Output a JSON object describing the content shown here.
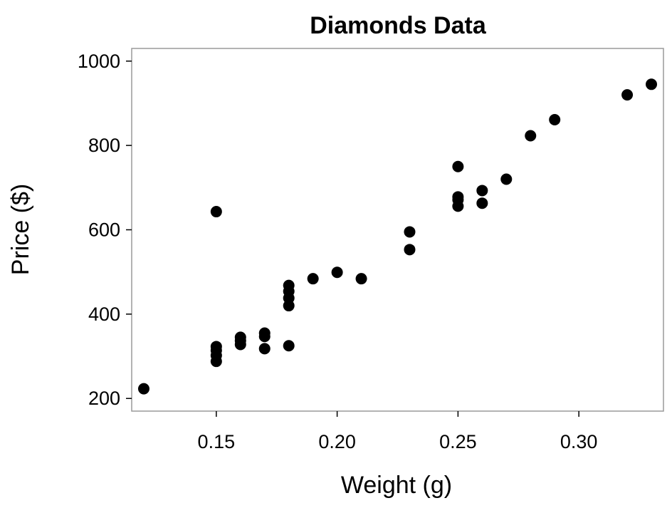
{
  "chart_data": {
    "type": "scatter",
    "title": "Diamonds Data",
    "xlabel": "Weight (g)",
    "ylabel": "Price ($)",
    "xlim": [
      0.115,
      0.335
    ],
    "ylim": [
      170,
      1030
    ],
    "x_ticks": [
      0.15,
      0.2,
      0.25,
      0.3
    ],
    "x_tick_labels": [
      "0.15",
      "0.20",
      "0.25",
      "0.30"
    ],
    "y_ticks": [
      200,
      400,
      600,
      800,
      1000
    ],
    "y_tick_labels": [
      "200",
      "400",
      "600",
      "800",
      "1000"
    ],
    "grid": false,
    "legend": "none",
    "marker_color": "#000000",
    "frame_color": "#9a9a9a",
    "points": [
      {
        "x": 0.12,
        "y": 223
      },
      {
        "x": 0.15,
        "y": 643
      },
      {
        "x": 0.15,
        "y": 323
      },
      {
        "x": 0.15,
        "y": 314
      },
      {
        "x": 0.15,
        "y": 302
      },
      {
        "x": 0.15,
        "y": 288
      },
      {
        "x": 0.16,
        "y": 345
      },
      {
        "x": 0.16,
        "y": 337
      },
      {
        "x": 0.16,
        "y": 328
      },
      {
        "x": 0.17,
        "y": 355
      },
      {
        "x": 0.17,
        "y": 347
      },
      {
        "x": 0.17,
        "y": 318
      },
      {
        "x": 0.18,
        "y": 468
      },
      {
        "x": 0.18,
        "y": 454
      },
      {
        "x": 0.18,
        "y": 438
      },
      {
        "x": 0.18,
        "y": 420
      },
      {
        "x": 0.18,
        "y": 325
      },
      {
        "x": 0.19,
        "y": 484
      },
      {
        "x": 0.2,
        "y": 499
      },
      {
        "x": 0.21,
        "y": 484
      },
      {
        "x": 0.23,
        "y": 595
      },
      {
        "x": 0.23,
        "y": 553
      },
      {
        "x": 0.25,
        "y": 750
      },
      {
        "x": 0.25,
        "y": 678
      },
      {
        "x": 0.25,
        "y": 671
      },
      {
        "x": 0.25,
        "y": 656
      },
      {
        "x": 0.26,
        "y": 693
      },
      {
        "x": 0.26,
        "y": 663
      },
      {
        "x": 0.27,
        "y": 720
      },
      {
        "x": 0.28,
        "y": 823
      },
      {
        "x": 0.29,
        "y": 861
      },
      {
        "x": 0.32,
        "y": 920
      },
      {
        "x": 0.33,
        "y": 945
      }
    ]
  }
}
